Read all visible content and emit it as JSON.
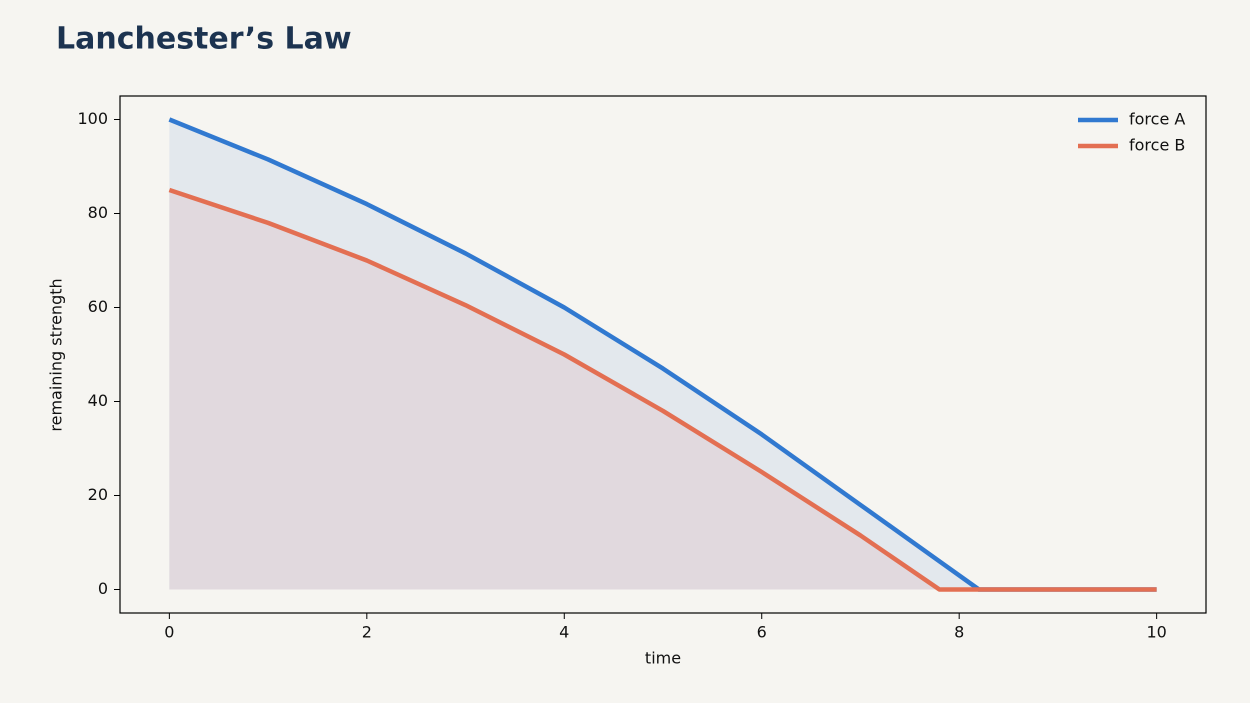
{
  "chart_data": {
    "type": "line",
    "title": "Lanchester’s Law",
    "x_label": "time",
    "y_label": "remaining strength",
    "x": [
      0,
      1,
      2,
      3,
      4,
      5,
      6,
      7,
      7.8,
      8.2,
      9,
      10
    ],
    "series": [
      {
        "name": "force A",
        "color": "#3179d0",
        "fill": "#dfe5ec",
        "values": [
          100,
          91.5,
          82,
          71.5,
          60,
          47,
          33,
          18,
          6,
          0,
          0,
          0
        ]
      },
      {
        "name": "force B",
        "color": "#e36f52",
        "fill": "#e1d6da",
        "values": [
          85,
          78,
          70,
          60.5,
          50,
          38,
          25,
          11.5,
          0,
          0,
          0,
          0
        ]
      }
    ],
    "xlim": [
      -0.5,
      10.5
    ],
    "ylim": [
      -5,
      105
    ],
    "xticks": [
      0,
      2,
      4,
      6,
      8,
      10
    ],
    "yticks": [
      0,
      20,
      40,
      60,
      80,
      100
    ],
    "grid": false,
    "legend": "upper right"
  }
}
